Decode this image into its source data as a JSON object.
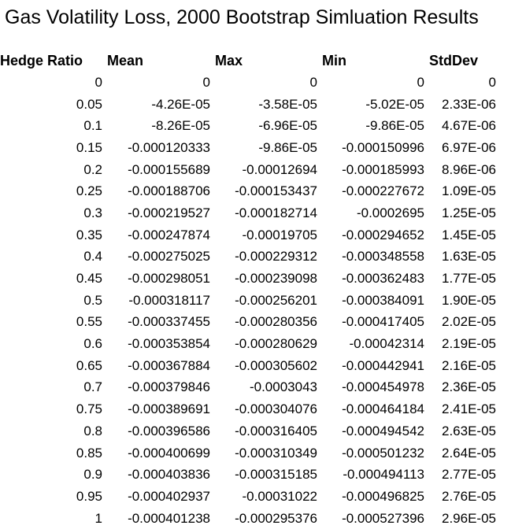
{
  "title": "Gas Volatility Loss, 2000 Bootstrap Simluation Results",
  "columns": [
    "Hedge Ratio",
    "Mean",
    "Max",
    "Min",
    "StdDev"
  ],
  "rows": [
    [
      "0",
      "0",
      "0",
      "0",
      "0"
    ],
    [
      "0.05",
      "-4.26E-05",
      "-3.58E-05",
      "-5.02E-05",
      "2.33E-06"
    ],
    [
      "0.1",
      "-8.26E-05",
      "-6.96E-05",
      "-9.86E-05",
      "4.67E-06"
    ],
    [
      "0.15",
      "-0.000120333",
      "-9.86E-05",
      "-0.000150996",
      "6.97E-06"
    ],
    [
      "0.2",
      "-0.000155689",
      "-0.00012694",
      "-0.000185993",
      "8.96E-06"
    ],
    [
      "0.25",
      "-0.000188706",
      "-0.000153437",
      "-0.000227672",
      "1.09E-05"
    ],
    [
      "0.3",
      "-0.000219527",
      "-0.000182714",
      "-0.0002695",
      "1.25E-05"
    ],
    [
      "0.35",
      "-0.000247874",
      "-0.00019705",
      "-0.000294652",
      "1.45E-05"
    ],
    [
      "0.4",
      "-0.000275025",
      "-0.000229312",
      "-0.000348558",
      "1.63E-05"
    ],
    [
      "0.45",
      "-0.000298051",
      "-0.000239098",
      "-0.000362483",
      "1.77E-05"
    ],
    [
      "0.5",
      "-0.000318117",
      "-0.000256201",
      "-0.000384091",
      "1.90E-05"
    ],
    [
      "0.55",
      "-0.000337455",
      "-0.000280356",
      "-0.000417405",
      "2.02E-05"
    ],
    [
      "0.6",
      "-0.000353854",
      "-0.000280629",
      "-0.00042314",
      "2.19E-05"
    ],
    [
      "0.65",
      "-0.000367884",
      "-0.000305602",
      "-0.000442941",
      "2.16E-05"
    ],
    [
      "0.7",
      "-0.000379846",
      "-0.0003043",
      "-0.000454978",
      "2.36E-05"
    ],
    [
      "0.75",
      "-0.000389691",
      "-0.000304076",
      "-0.000464184",
      "2.41E-05"
    ],
    [
      "0.8",
      "-0.000396586",
      "-0.000316405",
      "-0.000494542",
      "2.63E-05"
    ],
    [
      "0.85",
      "-0.000400699",
      "-0.000310349",
      "-0.000501232",
      "2.64E-05"
    ],
    [
      "0.9",
      "-0.000403836",
      "-0.000315185",
      "-0.000494113",
      "2.77E-05"
    ],
    [
      "0.95",
      "-0.000402937",
      "-0.00031022",
      "-0.000496825",
      "2.76E-05"
    ],
    [
      "1",
      "-0.000401238",
      "-0.000295376",
      "-0.000527396",
      "2.96E-05"
    ]
  ]
}
